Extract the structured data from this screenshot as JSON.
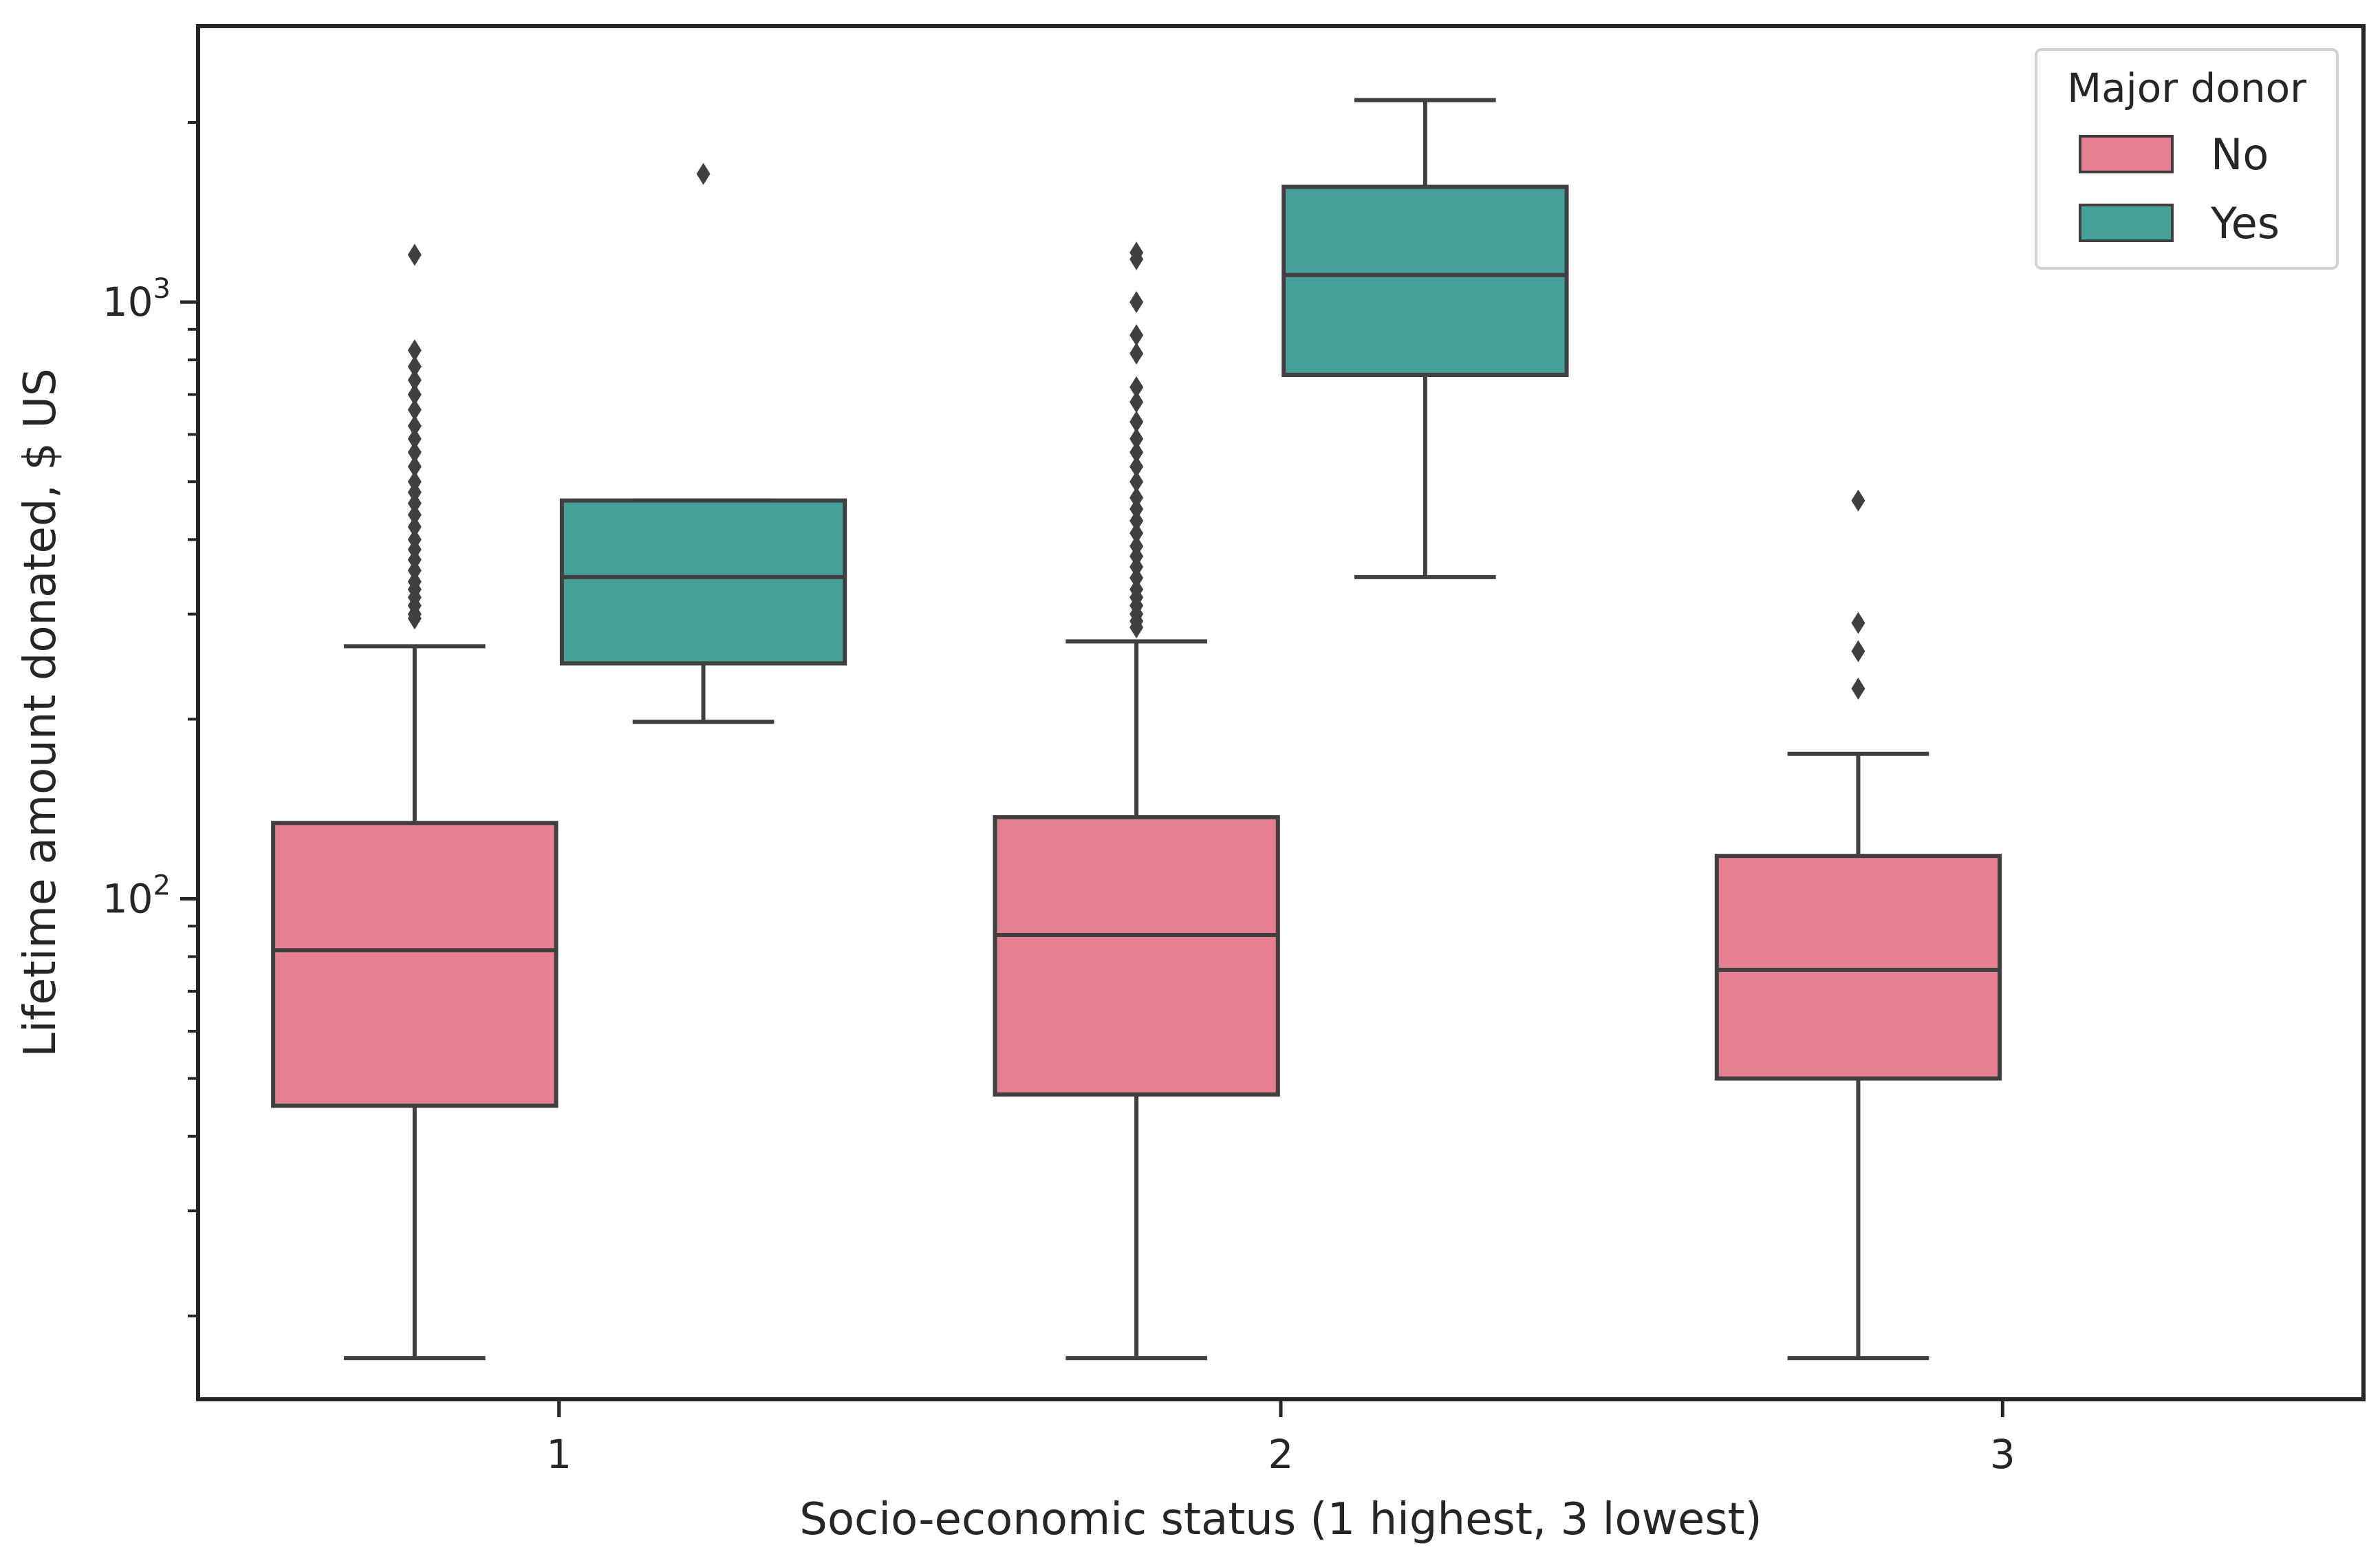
{
  "chart_data": {
    "type": "box",
    "xlabel": "Socio-economic status (1 highest, 3 lowest)",
    "ylabel": "Lifetime amount donated, $ US",
    "yscale": "log",
    "ylim": [
      14.5,
      2900
    ],
    "categories": [
      "1",
      "2",
      "3"
    ],
    "y_tick_labels": [
      {
        "value": 100,
        "base": "10",
        "exp": "2"
      },
      {
        "value": 1000,
        "base": "10",
        "exp": "3"
      }
    ],
    "legend": {
      "title": "Major donor",
      "position": "top-right"
    },
    "grid": false,
    "series": [
      {
        "name": "No",
        "color": "#e67f91",
        "boxes": [
          {
            "category": "1",
            "whisker_low": 17,
            "q1": 45,
            "median": 82,
            "q3": 134,
            "whisker_high": 265,
            "outliers": [
              295,
              300,
              310,
              320,
              330,
              340,
              355,
              370,
              385,
              400,
              420,
              440,
              460,
              480,
              500,
              530,
              560,
              590,
              620,
              660,
              700,
              740,
              780,
              830,
              1200
            ]
          },
          {
            "category": "2",
            "whisker_low": 17,
            "q1": 47,
            "median": 87,
            "q3": 137,
            "whisker_high": 270,
            "outliers": [
              285,
              292,
              300,
              310,
              320,
              330,
              345,
              360,
              375,
              390,
              410,
              430,
              450,
              470,
              500,
              530,
              560,
              590,
              630,
              680,
              720,
              820,
              880,
              1000,
              1180,
              1210
            ]
          },
          {
            "category": "3",
            "whisker_low": 17,
            "q1": 50,
            "median": 76,
            "q3": 118,
            "whisker_high": 175,
            "outliers": [
              225,
              260,
              290,
              465
            ]
          }
        ]
      },
      {
        "name": "Yes",
        "color": "#45a098",
        "boxes": [
          {
            "category": "1",
            "whisker_low": 198,
            "q1": 248,
            "median": 346,
            "q3": 465,
            "whisker_high": 465,
            "outliers": [
              1640
            ]
          },
          {
            "category": "2",
            "whisker_low": 346,
            "q1": 755,
            "median": 1110,
            "q3": 1560,
            "whisker_high": 2180,
            "outliers": []
          }
        ]
      }
    ]
  }
}
